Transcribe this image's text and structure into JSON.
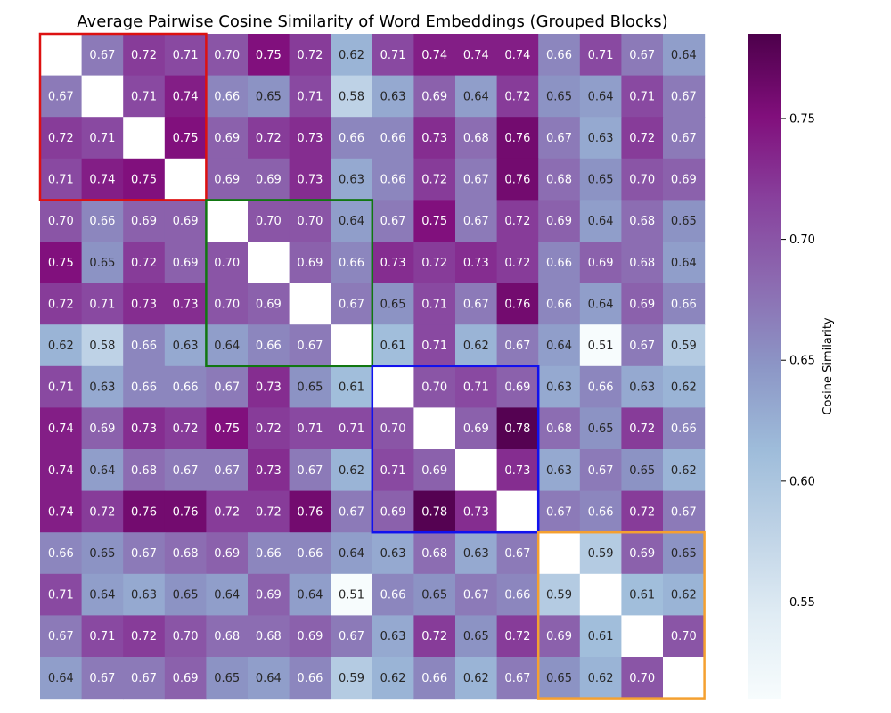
{
  "chart_data": {
    "type": "heatmap",
    "title": "Average Pairwise Cosine Similarity of Word Embeddings (Grouped Blocks)",
    "colorbar_label": "Cosine Similarity",
    "colorbar_ticks": [
      "0.55",
      "0.60",
      "0.65",
      "0.70",
      "0.75"
    ],
    "colorbar_range": [
      0.51,
      0.785
    ],
    "colormap": "BuPu",
    "grid": false,
    "values": [
      [
        null,
        0.67,
        0.72,
        0.71,
        0.7,
        0.75,
        0.72,
        0.62,
        0.71,
        0.74,
        0.74,
        0.74,
        0.66,
        0.71,
        0.67,
        0.64
      ],
      [
        0.67,
        null,
        0.71,
        0.74,
        0.66,
        0.65,
        0.71,
        0.58,
        0.63,
        0.69,
        0.64,
        0.72,
        0.65,
        0.64,
        0.71,
        0.67
      ],
      [
        0.72,
        0.71,
        null,
        0.75,
        0.69,
        0.72,
        0.73,
        0.66,
        0.66,
        0.73,
        0.68,
        0.76,
        0.67,
        0.63,
        0.72,
        0.67
      ],
      [
        0.71,
        0.74,
        0.75,
        null,
        0.69,
        0.69,
        0.73,
        0.63,
        0.66,
        0.72,
        0.67,
        0.76,
        0.68,
        0.65,
        0.7,
        0.69
      ],
      [
        0.7,
        0.66,
        0.69,
        0.69,
        null,
        0.7,
        0.7,
        0.64,
        0.67,
        0.75,
        0.67,
        0.72,
        0.69,
        0.64,
        0.68,
        0.65
      ],
      [
        0.75,
        0.65,
        0.72,
        0.69,
        0.7,
        null,
        0.69,
        0.66,
        0.73,
        0.72,
        0.73,
        0.72,
        0.66,
        0.69,
        0.68,
        0.64
      ],
      [
        0.72,
        0.71,
        0.73,
        0.73,
        0.7,
        0.69,
        null,
        0.67,
        0.65,
        0.71,
        0.67,
        0.76,
        0.66,
        0.64,
        0.69,
        0.66
      ],
      [
        0.62,
        0.58,
        0.66,
        0.63,
        0.64,
        0.66,
        0.67,
        null,
        0.61,
        0.71,
        0.62,
        0.67,
        0.64,
        0.51,
        0.67,
        0.59
      ],
      [
        0.71,
        0.63,
        0.66,
        0.66,
        0.67,
        0.73,
        0.65,
        0.61,
        null,
        0.7,
        0.71,
        0.69,
        0.63,
        0.66,
        0.63,
        0.62
      ],
      [
        0.74,
        0.69,
        0.73,
        0.72,
        0.75,
        0.72,
        0.71,
        0.71,
        0.7,
        null,
        0.69,
        0.78,
        0.68,
        0.65,
        0.72,
        0.66
      ],
      [
        0.74,
        0.64,
        0.68,
        0.67,
        0.67,
        0.73,
        0.67,
        0.62,
        0.71,
        0.69,
        null,
        0.73,
        0.63,
        0.67,
        0.65,
        0.62
      ],
      [
        0.74,
        0.72,
        0.76,
        0.76,
        0.72,
        0.72,
        0.76,
        0.67,
        0.69,
        0.78,
        0.73,
        null,
        0.67,
        0.66,
        0.72,
        0.67
      ],
      [
        0.66,
        0.65,
        0.67,
        0.68,
        0.69,
        0.66,
        0.66,
        0.64,
        0.63,
        0.68,
        0.63,
        0.67,
        null,
        0.59,
        0.69,
        0.65
      ],
      [
        0.71,
        0.64,
        0.63,
        0.65,
        0.64,
        0.69,
        0.64,
        0.51,
        0.66,
        0.65,
        0.67,
        0.66,
        0.59,
        null,
        0.61,
        0.62
      ],
      [
        0.67,
        0.71,
        0.72,
        0.7,
        0.68,
        0.68,
        0.69,
        0.67,
        0.63,
        0.72,
        0.65,
        0.72,
        0.69,
        0.61,
        null,
        0.7
      ],
      [
        0.64,
        0.67,
        0.67,
        0.69,
        0.65,
        0.64,
        0.66,
        0.59,
        0.62,
        0.66,
        0.62,
        0.67,
        0.65,
        0.62,
        0.7,
        null
      ]
    ],
    "blocks": [
      {
        "start": 0,
        "end": 3,
        "color": "#dd1111"
      },
      {
        "start": 4,
        "end": 7,
        "color": "#117711"
      },
      {
        "start": 8,
        "end": 11,
        "color": "#1111ee"
      },
      {
        "start": 12,
        "end": 15,
        "color": "#f5a030"
      }
    ]
  }
}
